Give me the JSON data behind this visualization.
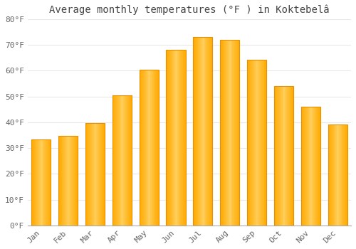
{
  "title": "Average monthly temperatures (°F ) in Koktebelâ",
  "months": [
    "Jan",
    "Feb",
    "Mar",
    "Apr",
    "May",
    "Jun",
    "Jul",
    "Aug",
    "Sep",
    "Oct",
    "Nov",
    "Dec"
  ],
  "values": [
    33.3,
    34.7,
    39.7,
    50.5,
    60.3,
    68.0,
    73.0,
    72.0,
    64.2,
    54.0,
    46.0,
    39.2
  ],
  "bar_color_main": "#FFAA00",
  "bar_color_light": "#FFD060",
  "bar_edge_color": "#E89000",
  "background_color": "#FFFFFF",
  "plot_bg_color": "#FFFFFF",
  "grid_color": "#E8E8E8",
  "text_color": "#666666",
  "title_color": "#444444",
  "ylim": [
    0,
    80
  ],
  "ytick_step": 10,
  "title_fontsize": 10,
  "tick_fontsize": 8,
  "bar_width": 0.72
}
